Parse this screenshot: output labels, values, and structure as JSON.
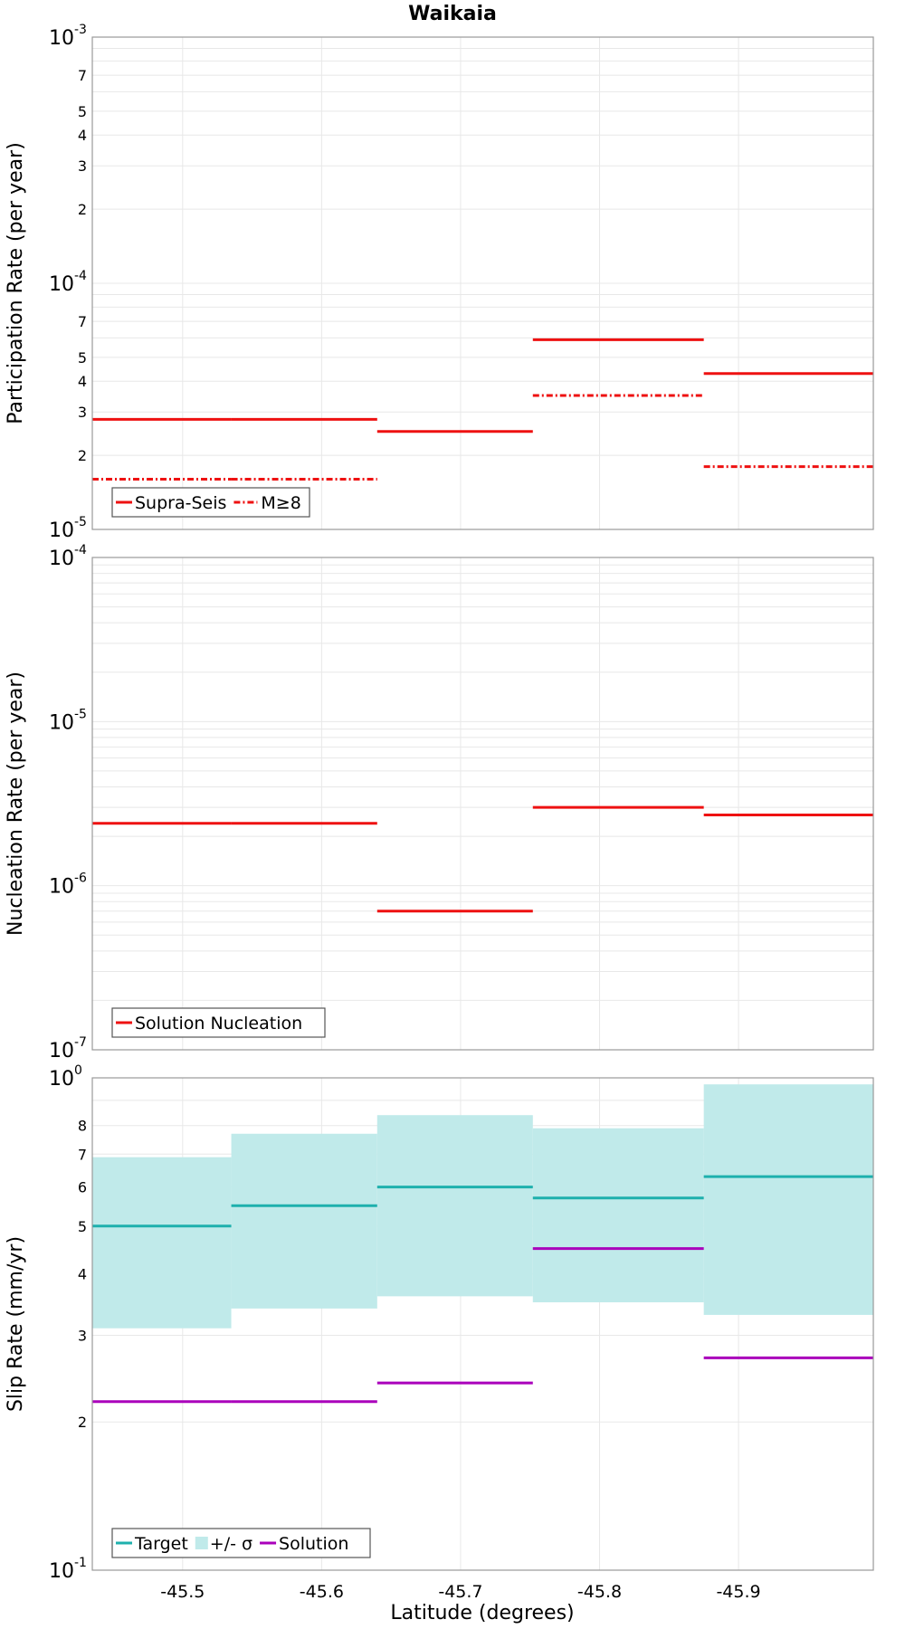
{
  "title": "Waikaia",
  "xlabel": "Latitude (degrees)",
  "xaxis": {
    "lim": [
      -45.435,
      -45.997
    ],
    "ticks": [
      -45.5,
      -45.6,
      -45.7,
      -45.8,
      -45.9
    ],
    "tick_labels": [
      "-45.5",
      "-45.6",
      "-45.7",
      "-45.8",
      "-45.9"
    ]
  },
  "colors": {
    "red": "#ee1111",
    "teal": "#1eb0ad",
    "band": "#c0eaea",
    "purple": "#aa00bb",
    "grid": "#e8e8e8"
  },
  "chart_data": [
    {
      "type": "line",
      "scale": "log",
      "ylabel": "Participation Rate (per year)",
      "ylim": [
        1e-05,
        0.001
      ],
      "grid": true,
      "legend_position": "bottom-left",
      "decade_labels": [
        {
          "base": "10",
          "exp": "-3"
        },
        {
          "base": "10",
          "exp": "-4"
        },
        {
          "base": "10",
          "exp": "-5"
        }
      ],
      "series": [
        {
          "name": "Supra-Seis",
          "style": "solid",
          "color": "#ee1111",
          "segments": [
            [
              -45.435,
              -45.535,
              2.8e-05
            ],
            [
              -45.535,
              -45.64,
              2.8e-05
            ],
            [
              -45.64,
              -45.752,
              2.5e-05
            ],
            [
              -45.752,
              -45.875,
              5.9e-05
            ],
            [
              -45.875,
              -45.997,
              4.3e-05
            ]
          ]
        },
        {
          "name": "M≥8",
          "style": "dashdot",
          "color": "#ee1111",
          "segments": [
            [
              -45.435,
              -45.535,
              1.6e-05
            ],
            [
              -45.535,
              -45.64,
              1.6e-05
            ],
            [
              -45.752,
              -45.875,
              3.5e-05
            ],
            [
              -45.875,
              -45.997,
              1.8e-05
            ]
          ]
        }
      ]
    },
    {
      "type": "line",
      "scale": "log",
      "ylabel": "Nucleation Rate (per year)",
      "ylim": [
        1e-07,
        0.0001
      ],
      "grid": true,
      "legend_position": "bottom-left",
      "decade_labels": [
        {
          "base": "10",
          "exp": "-4"
        },
        {
          "base": "10",
          "exp": "-5"
        },
        {
          "base": "10",
          "exp": "-6"
        },
        {
          "base": "10",
          "exp": "-7"
        }
      ],
      "series": [
        {
          "name": "Solution Nucleation",
          "style": "solid",
          "color": "#ee1111",
          "segments": [
            [
              -45.435,
              -45.535,
              2.4e-06
            ],
            [
              -45.535,
              -45.64,
              2.4e-06
            ],
            [
              -45.64,
              -45.752,
              7e-07
            ],
            [
              -45.752,
              -45.875,
              3e-06
            ],
            [
              -45.875,
              -45.997,
              2.7e-06
            ]
          ]
        }
      ]
    },
    {
      "type": "area",
      "scale": "log",
      "ylabel": "Slip Rate (mm/yr)",
      "ylim": [
        0.1,
        1.0
      ],
      "grid": true,
      "legend_position": "bottom-left",
      "decade_labels": [
        {
          "base": "10",
          "exp": "0"
        },
        {
          "base": "10",
          "exp": "-1"
        }
      ],
      "series": [
        {
          "name": "Target",
          "style": "solid",
          "color": "#1eb0ad",
          "segments": [
            [
              -45.435,
              -45.535,
              0.5
            ],
            [
              -45.535,
              -45.64,
              0.55
            ],
            [
              -45.64,
              -45.752,
              0.6
            ],
            [
              -45.752,
              -45.875,
              0.57
            ],
            [
              -45.875,
              -45.997,
              0.63
            ]
          ]
        },
        {
          "name": "+/- σ",
          "style": "band",
          "color": "#c0eaea",
          "bands": [
            [
              -45.435,
              -45.535,
              0.31,
              0.69
            ],
            [
              -45.535,
              -45.64,
              0.34,
              0.77
            ],
            [
              -45.64,
              -45.752,
              0.36,
              0.84
            ],
            [
              -45.752,
              -45.875,
              0.35,
              0.79
            ],
            [
              -45.875,
              -45.997,
              0.33,
              0.97
            ]
          ]
        },
        {
          "name": "Solution",
          "style": "solid",
          "color": "#aa00bb",
          "segments": [
            [
              -45.435,
              -45.535,
              0.22
            ],
            [
              -45.535,
              -45.64,
              0.22
            ],
            [
              -45.64,
              -45.752,
              0.24
            ],
            [
              -45.752,
              -45.875,
              0.45
            ],
            [
              -45.875,
              -45.997,
              0.27
            ]
          ]
        }
      ]
    }
  ]
}
